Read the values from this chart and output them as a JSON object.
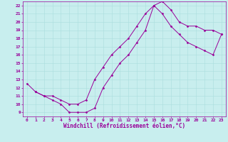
{
  "xlabel": "Windchill (Refroidissement éolien,°C)",
  "ylabel": "",
  "background_color": "#c8eeee",
  "line_color": "#990099",
  "xlim": [
    -0.5,
    23.5
  ],
  "ylim": [
    8.5,
    22.5
  ],
  "xticks": [
    0,
    1,
    2,
    3,
    4,
    5,
    6,
    7,
    8,
    9,
    10,
    11,
    12,
    13,
    14,
    15,
    16,
    17,
    18,
    19,
    20,
    21,
    22,
    23
  ],
  "yticks": [
    9,
    10,
    11,
    12,
    13,
    14,
    15,
    16,
    17,
    18,
    19,
    20,
    21,
    22
  ],
  "line1_x": [
    1,
    2,
    3,
    4,
    5,
    6,
    7,
    8,
    9,
    10,
    11,
    12,
    13,
    14,
    15,
    16,
    17,
    18,
    19,
    20,
    21,
    22,
    23
  ],
  "line1_y": [
    11.5,
    11.0,
    10.5,
    10.0,
    9.0,
    9.0,
    9.0,
    9.5,
    12.0,
    13.5,
    15.0,
    16.0,
    17.5,
    19.0,
    22.0,
    22.5,
    21.5,
    20.0,
    19.5,
    19.5,
    19.0,
    19.0,
    18.5
  ],
  "line2_x": [
    0,
    1,
    2,
    3,
    4,
    5,
    6,
    7,
    8,
    9,
    10,
    11,
    12,
    13,
    14,
    15,
    16,
    17,
    18,
    19,
    20,
    21,
    22,
    23
  ],
  "line2_y": [
    12.5,
    11.5,
    11.0,
    11.0,
    10.5,
    10.0,
    10.0,
    10.5,
    13.0,
    14.5,
    16.0,
    17.0,
    18.0,
    19.5,
    21.0,
    22.0,
    21.0,
    19.5,
    18.5,
    17.5,
    17.0,
    16.5,
    16.0,
    18.5
  ],
  "grid_color": "#aadddd",
  "tick_fontsize": 4.5,
  "xlabel_fontsize": 5.5,
  "marker": "D",
  "markersize": 1.5,
  "linewidth": 0.7
}
